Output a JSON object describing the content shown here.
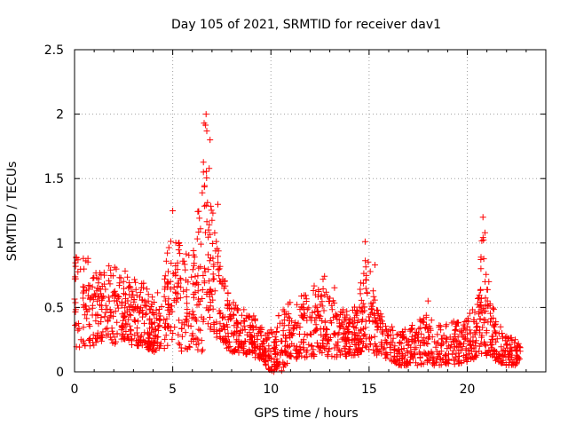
{
  "chart_data": {
    "type": "scatter",
    "title": "Day 105 of 2021, SRMTID for receiver dav1",
    "xlabel": "GPS time / hours",
    "ylabel": "SRMTID / TECUs",
    "xlim": [
      0,
      24
    ],
    "ylim": [
      0,
      2.5
    ],
    "xticks": [
      0,
      5,
      10,
      15,
      20
    ],
    "xtick_labels": [
      "0",
      "5",
      "10",
      "15",
      "20"
    ],
    "yticks": [
      0,
      0.5,
      1,
      1.5,
      2,
      2.5
    ],
    "ytick_labels": [
      "0",
      "0.5",
      "1",
      "1.5",
      "2",
      "2.5"
    ],
    "grid": true,
    "marker": "+",
    "series": [
      {
        "name": "dav1",
        "color": "#ff0000",
        "envelope": {
          "x": [
            0,
            0.5,
            1,
            1.5,
            2,
            2.5,
            3,
            3.5,
            4,
            4.5,
            5,
            5.5,
            6,
            6.5,
            6.7,
            7,
            7.5,
            8,
            8.5,
            9,
            9.5,
            10,
            10.5,
            11,
            11.5,
            12,
            12.5,
            13,
            13.5,
            14,
            14.5,
            14.8,
            15,
            15.5,
            16,
            16.5,
            17,
            17.5,
            18,
            18.5,
            19,
            19.5,
            20,
            20.5,
            20.8,
            21,
            21.5,
            22,
            22.5,
            22.7
          ],
          "low": [
            0.15,
            0.2,
            0.2,
            0.25,
            0.2,
            0.25,
            0.2,
            0.2,
            0.15,
            0.15,
            0.25,
            0.15,
            0.2,
            0.15,
            0.3,
            0.3,
            0.2,
            0.15,
            0.15,
            0.12,
            0.1,
            0.0,
            0.0,
            0.1,
            0.1,
            0.1,
            0.15,
            0.1,
            0.12,
            0.12,
            0.12,
            0.2,
            0.15,
            0.12,
            0.1,
            0.05,
            0.05,
            0.05,
            0.05,
            0.05,
            0.05,
            0.06,
            0.08,
            0.1,
            0.15,
            0.12,
            0.08,
            0.05,
            0.05,
            0.1
          ],
          "high": [
            0.9,
            0.9,
            0.85,
            0.8,
            0.85,
            0.8,
            0.75,
            0.7,
            0.6,
            0.75,
            1.2,
            0.9,
            0.95,
            1.6,
            2.0,
            1.3,
            0.8,
            0.55,
            0.5,
            0.45,
            0.4,
            0.35,
            0.5,
            0.55,
            0.6,
            0.65,
            0.7,
            0.8,
            0.55,
            0.45,
            0.6,
            1.0,
            0.85,
            0.5,
            0.4,
            0.3,
            0.35,
            0.4,
            0.45,
            0.4,
            0.4,
            0.4,
            0.45,
            0.55,
            1.2,
            0.7,
            0.4,
            0.3,
            0.25,
            0.2
          ]
        },
        "peaks": [
          {
            "x": 5.0,
            "y": 1.25
          },
          {
            "x": 6.7,
            "y": 2.0
          },
          {
            "x": 6.6,
            "y": 1.93
          },
          {
            "x": 6.9,
            "y": 1.8
          },
          {
            "x": 7.3,
            "y": 1.3
          },
          {
            "x": 14.8,
            "y": 1.01
          },
          {
            "x": 15.3,
            "y": 0.83
          },
          {
            "x": 18.0,
            "y": 0.55
          },
          {
            "x": 20.8,
            "y": 1.2
          },
          {
            "x": 20.9,
            "y": 1.08
          },
          {
            "x": 21.1,
            "y": 0.7
          }
        ],
        "n_points": 1900
      }
    ]
  }
}
